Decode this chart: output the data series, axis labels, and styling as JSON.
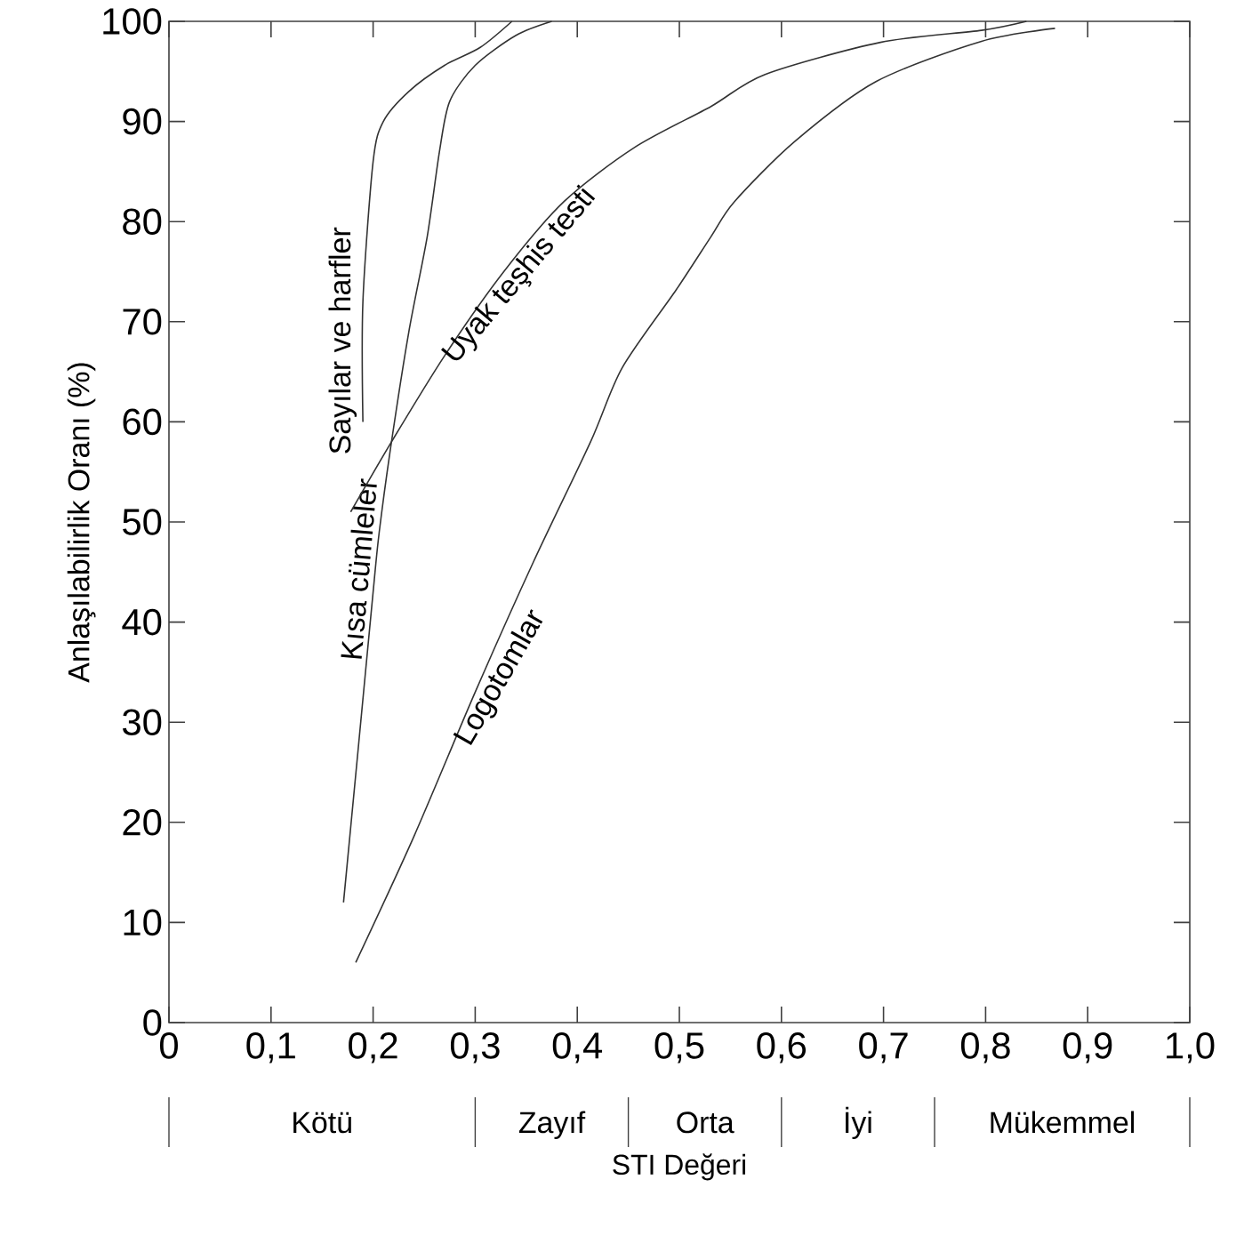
{
  "chart_data": {
    "type": "line",
    "xlabel": "STI Değeri",
    "ylabel": "Anlaşılabilirlik Oranı (%)",
    "xlim": [
      0,
      1.0
    ],
    "ylim": [
      0,
      100
    ],
    "xticks": [
      0,
      {
        "value": 0.1,
        "label": "0,1"
      },
      {
        "value": 0.2,
        "label": "0,2"
      },
      {
        "value": 0.3,
        "label": "0,3"
      },
      {
        "value": 0.4,
        "label": "0,4"
      },
      {
        "value": 0.5,
        "label": "0,5"
      },
      {
        "value": 0.6,
        "label": "0,6"
      },
      {
        "value": 0.7,
        "label": "0,7"
      },
      {
        "value": 0.8,
        "label": "0,8"
      },
      {
        "value": 0.9,
        "label": "0,9"
      },
      {
        "value": 1.0,
        "label": "1,0"
      }
    ],
    "yticks": [
      0,
      10,
      20,
      30,
      40,
      50,
      60,
      70,
      80,
      90,
      100
    ],
    "grid": false,
    "legend": false,
    "marker": "none",
    "line_style": "solid",
    "series": [
      {
        "name": "Sayılar ve harfler",
        "color": "#333333",
        "x": [
          0.19,
          0.19,
          0.2,
          0.21,
          0.235,
          0.27,
          0.305,
          0.336
        ],
        "values": [
          60,
          72,
          86,
          90,
          93,
          95.6,
          97.4,
          100
        ]
      },
      {
        "name": "Kısa cümleler",
        "color": "#333333",
        "x": [
          0.171,
          0.186,
          0.2,
          0.206,
          0.218,
          0.235,
          0.253,
          0.265,
          0.275,
          0.3,
          0.34,
          0.375
        ],
        "values": [
          12,
          28,
          43,
          49,
          58,
          69,
          78.5,
          87,
          92,
          95.6,
          98.6,
          100
        ]
      },
      {
        "name": "Uyak teşhis testi",
        "color": "#333333",
        "x": [
          0.178,
          0.218,
          0.27,
          0.328,
          0.387,
          0.456,
          0.531,
          0.584,
          0.697,
          0.796,
          0.84
        ],
        "values": [
          51,
          58,
          66.6,
          75,
          82,
          87.4,
          91.5,
          94.7,
          97.9,
          99.1,
          100
        ]
      },
      {
        "name": "Logotomlar",
        "color": "#333333",
        "x": [
          0.183,
          0.24,
          0.3,
          0.357,
          0.413,
          0.444,
          0.497,
          0.531,
          0.554,
          0.613,
          0.693,
          0.796,
          0.868
        ],
        "values": [
          6,
          18.6,
          33,
          46,
          58,
          65.4,
          73.2,
          78.5,
          82,
          88,
          94,
          98,
          99.3
        ]
      }
    ],
    "annotations": [
      "Kötü",
      "Zayıf",
      "Orta",
      "İyi",
      "Mükemmel"
    ]
  }
}
